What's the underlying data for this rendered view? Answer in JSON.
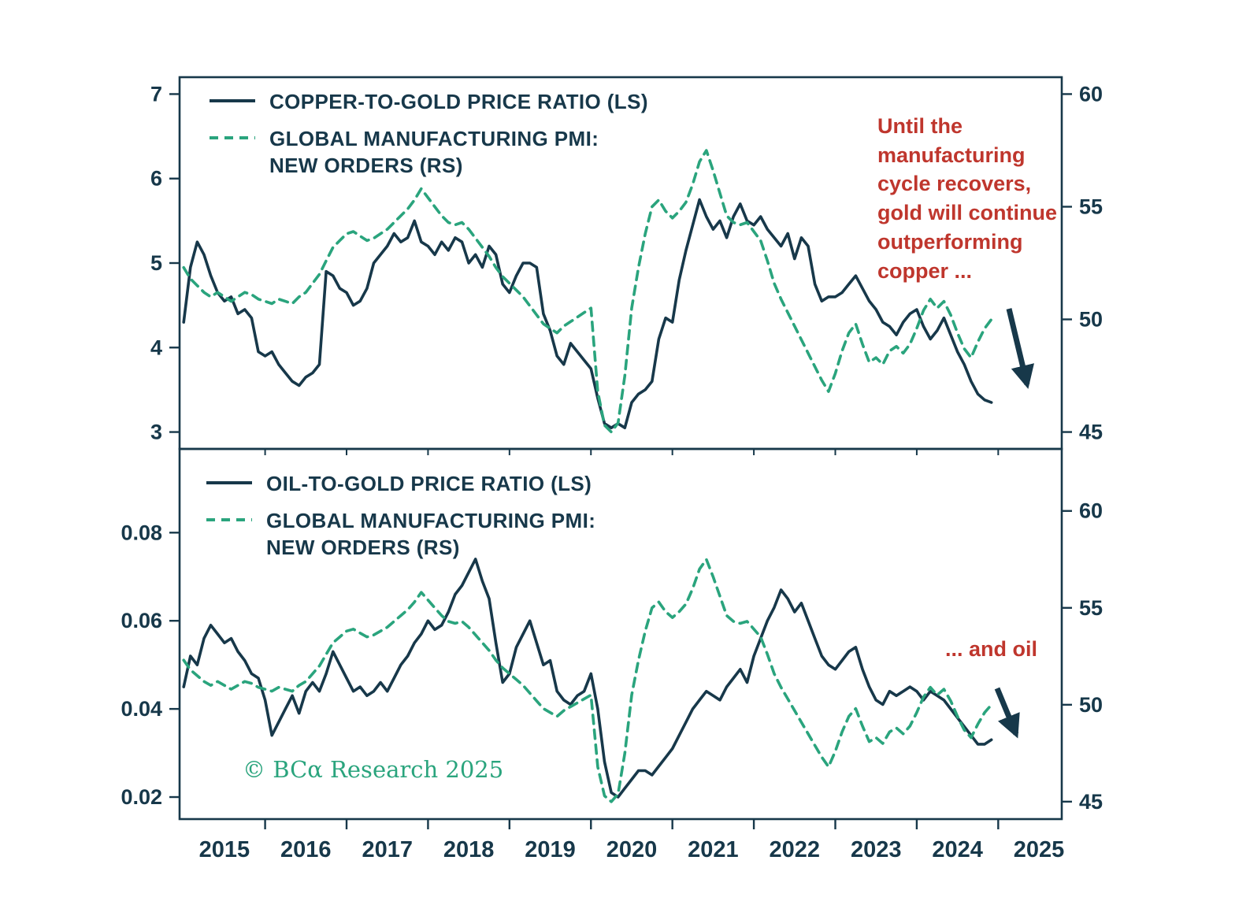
{
  "colors": {
    "navy": "#17384a",
    "green": "#2aa47d",
    "red": "#bf362d",
    "background": "#ffffff"
  },
  "annotations": {
    "copper_note": "Until the\nmanufacturing\ncycle recovers,\ngold will continue\noutperforming\ncopper ...",
    "oil_note": "... and oil"
  },
  "footer": {
    "copyright": "© BCα Research 2025"
  },
  "chart_data": {
    "type": "line",
    "frequency": "monthly",
    "x_start": 2015.0,
    "x_step": 0.0833333,
    "xlim": [
      2014.95,
      2025.78
    ],
    "x_tick_labels": [
      "2015",
      "2016",
      "2017",
      "2018",
      "2019",
      "2020",
      "2021",
      "2022",
      "2023",
      "2024",
      "2025"
    ],
    "x_tick_label_positions": [
      2015.5,
      2016.5,
      2017.5,
      2018.5,
      2019.5,
      2020.5,
      2021.5,
      2022.5,
      2023.5,
      2024.5,
      2025.5
    ],
    "x_tick_marks": [
      2016,
      2017,
      2018,
      2019,
      2020,
      2021,
      2022,
      2023,
      2024,
      2025
    ],
    "legend_position": "upper-left-inside",
    "grid": false,
    "panels": [
      {
        "name": "copper-panel",
        "left_axis": {
          "ticks": [
            3,
            4,
            5,
            6,
            7
          ],
          "labels": [
            "3",
            "4",
            "5",
            "6",
            "7"
          ],
          "range": [
            2.8,
            7.2
          ]
        },
        "right_axis": {
          "ticks": [
            45,
            50,
            55,
            60
          ],
          "labels": [
            "45",
            "50",
            "55",
            "60"
          ],
          "range": [
            44.25,
            60.75
          ]
        },
        "series": [
          {
            "id": "copper_gold_ratio",
            "name": "COPPER-TO-GOLD PRICE RATIO (LS)",
            "axis": "left",
            "style": "solid",
            "color": "#17384a",
            "values": [
              4.3,
              4.95,
              5.25,
              5.1,
              4.85,
              4.65,
              4.55,
              4.6,
              4.4,
              4.45,
              4.35,
              3.95,
              3.9,
              3.95,
              3.8,
              3.7,
              3.6,
              3.55,
              3.65,
              3.7,
              3.8,
              4.9,
              4.85,
              4.7,
              4.65,
              4.5,
              4.55,
              4.7,
              5.0,
              5.1,
              5.2,
              5.35,
              5.25,
              5.3,
              5.5,
              5.25,
              5.2,
              5.1,
              5.25,
              5.15,
              5.3,
              5.25,
              5.0,
              5.1,
              4.95,
              5.2,
              5.1,
              4.75,
              4.65,
              4.85,
              5.0,
              5.0,
              4.95,
              4.4,
              4.2,
              3.9,
              3.8,
              4.05,
              3.95,
              3.85,
              3.75,
              3.4,
              3.1,
              3.05,
              3.1,
              3.05,
              3.35,
              3.45,
              3.5,
              3.6,
              4.1,
              4.35,
              4.3,
              4.8,
              5.15,
              5.45,
              5.75,
              5.55,
              5.4,
              5.5,
              5.3,
              5.55,
              5.7,
              5.5,
              5.45,
              5.55,
              5.4,
              5.3,
              5.2,
              5.35,
              5.05,
              5.3,
              5.2,
              4.75,
              4.55,
              4.6,
              4.6,
              4.65,
              4.75,
              4.85,
              4.7,
              4.55,
              4.45,
              4.3,
              4.25,
              4.15,
              4.3,
              4.4,
              4.45,
              4.25,
              4.1,
              4.2,
              4.35,
              4.15,
              3.95,
              3.8,
              3.6,
              3.45,
              3.38,
              3.35
            ]
          },
          {
            "id": "pmi_new_orders",
            "name": "GLOBAL MANUFACTURING PMI: NEW ORDERS (RS)",
            "name_lines": [
              "GLOBAL MANUFACTURING PMI:",
              "NEW ORDERS (RS)"
            ],
            "axis": "right",
            "style": "dashed",
            "color": "#2aa47d",
            "values": [
              52.3,
              51.8,
              51.5,
              51.2,
              51.0,
              51.2,
              51.0,
              50.8,
              51.0,
              51.2,
              51.1,
              50.9,
              50.8,
              50.7,
              50.9,
              50.8,
              50.7,
              51.0,
              51.2,
              51.6,
              52.0,
              52.6,
              53.2,
              53.5,
              53.8,
              53.9,
              53.7,
              53.5,
              53.6,
              53.8,
              54.0,
              54.3,
              54.6,
              54.9,
              55.3,
              55.8,
              55.4,
              55.0,
              54.6,
              54.3,
              54.2,
              54.3,
              54.0,
              53.6,
              53.2,
              52.8,
              52.3,
              51.9,
              51.6,
              51.3,
              51.0,
              50.6,
              50.2,
              49.8,
              49.6,
              49.4,
              49.7,
              49.9,
              50.1,
              50.3,
              50.5,
              46.8,
              45.3,
              45.0,
              45.4,
              47.5,
              50.5,
              52.3,
              53.8,
              55.0,
              55.3,
              54.8,
              54.5,
              54.8,
              55.2,
              56.0,
              57.0,
              57.5,
              56.6,
              55.6,
              54.6,
              54.3,
              54.2,
              54.3,
              53.9,
              53.5,
              52.6,
              51.6,
              50.9,
              50.3,
              49.7,
              49.1,
              48.5,
              47.9,
              47.3,
              46.8,
              47.6,
              48.6,
              49.4,
              49.8,
              48.9,
              48.1,
              48.3,
              48.0,
              48.6,
              48.8,
              48.5,
              48.9,
              49.6,
              50.4,
              50.9,
              50.5,
              50.8,
              50.2,
              49.4,
              48.7,
              48.3,
              49.0,
              49.6,
              50.0
            ]
          }
        ]
      },
      {
        "name": "oil-panel",
        "left_axis": {
          "ticks": [
            0.02,
            0.04,
            0.06,
            0.08
          ],
          "labels": [
            "0.02",
            "0.04",
            "0.06",
            "0.08"
          ],
          "range": [
            0.015,
            0.099
          ]
        },
        "right_axis": {
          "ticks": [
            45,
            50,
            55,
            60
          ],
          "labels": [
            "45",
            "50",
            "55",
            "60"
          ],
          "range": [
            44.1,
            63.2
          ]
        },
        "series": [
          {
            "id": "oil_gold_ratio",
            "name": "OIL-TO-GOLD PRICE RATIO (LS)",
            "axis": "left",
            "style": "solid",
            "color": "#17384a",
            "values": [
              0.045,
              0.052,
              0.05,
              0.056,
              0.059,
              0.057,
              0.055,
              0.056,
              0.053,
              0.051,
              0.048,
              0.047,
              0.042,
              0.034,
              0.037,
              0.04,
              0.043,
              0.039,
              0.044,
              0.046,
              0.044,
              0.048,
              0.053,
              0.05,
              0.047,
              0.044,
              0.045,
              0.043,
              0.044,
              0.046,
              0.044,
              0.047,
              0.05,
              0.052,
              0.055,
              0.057,
              0.06,
              0.058,
              0.059,
              0.062,
              0.066,
              0.068,
              0.071,
              0.074,
              0.069,
              0.065,
              0.055,
              0.046,
              0.048,
              0.054,
              0.057,
              0.06,
              0.055,
              0.05,
              0.051,
              0.044,
              0.042,
              0.041,
              0.043,
              0.044,
              0.048,
              0.04,
              0.028,
              0.021,
              0.02,
              0.022,
              0.024,
              0.026,
              0.026,
              0.025,
              0.027,
              0.029,
              0.031,
              0.034,
              0.037,
              0.04,
              0.042,
              0.044,
              0.043,
              0.042,
              0.045,
              0.047,
              0.049,
              0.046,
              0.052,
              0.056,
              0.06,
              0.063,
              0.067,
              0.065,
              0.062,
              0.064,
              0.06,
              0.056,
              0.052,
              0.05,
              0.049,
              0.051,
              0.053,
              0.054,
              0.049,
              0.045,
              0.042,
              0.041,
              0.044,
              0.043,
              0.044,
              0.045,
              0.044,
              0.042,
              0.044,
              0.043,
              0.042,
              0.04,
              0.038,
              0.036,
              0.034,
              0.032,
              0.032,
              0.033
            ]
          },
          {
            "id": "pmi_new_orders",
            "name": "GLOBAL MANUFACTURING PMI: NEW ORDERS (RS)",
            "name_lines": [
              "GLOBAL MANUFACTURING PMI:",
              "NEW ORDERS (RS)"
            ],
            "axis": "right",
            "style": "dashed",
            "color": "#2aa47d",
            "values": [
              52.3,
              51.8,
              51.5,
              51.2,
              51.0,
              51.2,
              51.0,
              50.8,
              51.0,
              51.2,
              51.1,
              50.9,
              50.8,
              50.7,
              50.9,
              50.8,
              50.7,
              51.0,
              51.2,
              51.6,
              52.0,
              52.6,
              53.2,
              53.5,
              53.8,
              53.9,
              53.7,
              53.5,
              53.6,
              53.8,
              54.0,
              54.3,
              54.6,
              54.9,
              55.3,
              55.8,
              55.4,
              55.0,
              54.6,
              54.3,
              54.2,
              54.3,
              54.0,
              53.6,
              53.2,
              52.8,
              52.3,
              51.9,
              51.6,
              51.3,
              51.0,
              50.6,
              50.2,
              49.8,
              49.6,
              49.4,
              49.7,
              49.9,
              50.1,
              50.3,
              50.5,
              46.8,
              45.3,
              45.0,
              45.4,
              47.5,
              50.5,
              52.3,
              53.8,
              55.0,
              55.3,
              54.8,
              54.5,
              54.8,
              55.2,
              56.0,
              57.0,
              57.5,
              56.6,
              55.6,
              54.6,
              54.3,
              54.2,
              54.3,
              53.9,
              53.5,
              52.6,
              51.6,
              50.9,
              50.3,
              49.7,
              49.1,
              48.5,
              47.9,
              47.3,
              46.8,
              47.6,
              48.6,
              49.4,
              49.8,
              48.9,
              48.1,
              48.3,
              48.0,
              48.6,
              48.8,
              48.5,
              48.9,
              49.6,
              50.4,
              50.9,
              50.5,
              50.8,
              50.2,
              49.4,
              48.7,
              48.3,
              49.0,
              49.6,
              50.0
            ]
          }
        ]
      }
    ]
  }
}
